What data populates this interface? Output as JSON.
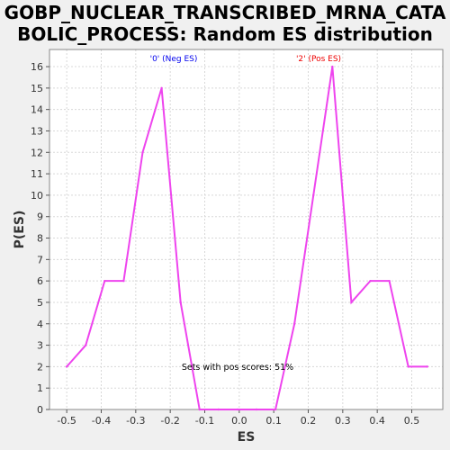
{
  "chart_data": {
    "type": "line",
    "title_lines": [
      "GOBP_NUCLEAR_TRANSCRIBED_MRNA_CATA",
      "BOLIC_PROCESS: Random ES distribution"
    ],
    "xlabel": "ES",
    "ylabel": "P(ES)",
    "xlim": [
      -0.55,
      0.59
    ],
    "ylim": [
      0,
      16.8
    ],
    "x_ticks": [
      "-0.5",
      "-0.4",
      "-0.3",
      "-0.2",
      "-0.1",
      "0.0",
      "0.1",
      "0.2",
      "0.3",
      "0.4",
      "0.5"
    ],
    "x_tick_values": [
      -0.5,
      -0.4,
      -0.3,
      -0.2,
      -0.1,
      0.0,
      0.1,
      0.2,
      0.3,
      0.4,
      0.5
    ],
    "y_ticks": [
      "0",
      "1",
      "2",
      "3",
      "4",
      "5",
      "6",
      "7",
      "8",
      "9",
      "10",
      "11",
      "12",
      "13",
      "14",
      "15",
      "16"
    ],
    "y_tick_values": [
      0,
      1,
      2,
      3,
      4,
      5,
      6,
      7,
      8,
      9,
      10,
      11,
      12,
      13,
      14,
      15,
      16
    ],
    "grid": true,
    "series": [
      {
        "color": "#ee44ee",
        "x": [
          -0.5,
          -0.445,
          -0.39,
          -0.335,
          -0.28,
          -0.225,
          -0.17,
          -0.115,
          -0.06,
          -0.005,
          0.05,
          0.105,
          0.16,
          0.215,
          0.27,
          0.325,
          0.38,
          0.435,
          0.49,
          0.545
        ],
        "y": [
          2,
          3,
          6,
          6,
          12,
          15,
          5,
          0,
          0,
          0,
          0,
          0,
          4,
          10,
          16,
          5,
          6,
          6,
          2,
          2
        ]
      }
    ],
    "annotations": {
      "neg_label": "'0' (Neg ES)",
      "pos_label": "'2' (Pos ES)",
      "neg_label_color": "#0000ee",
      "pos_label_color": "#ee0000",
      "score_text": "Sets with pos scores: 51%"
    }
  }
}
